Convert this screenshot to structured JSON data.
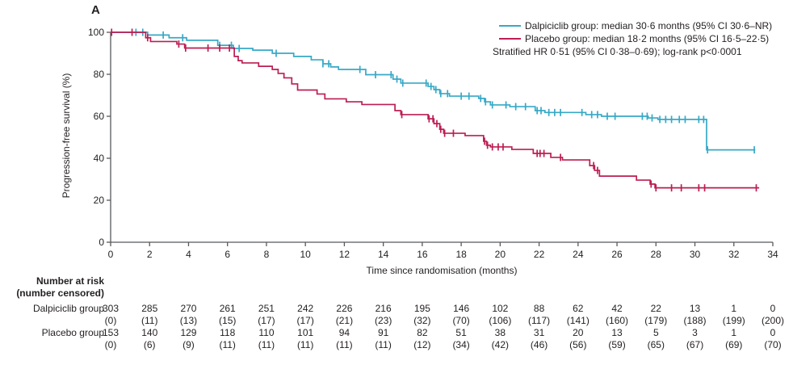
{
  "panel_label": "A",
  "colors": {
    "dalpiciclib": "#37A9C6",
    "placebo": "#BC1E52",
    "axis": "#58595B",
    "text": "#231F20"
  },
  "legend": {
    "entries": [
      {
        "label": "Dalpiciclib group: median 30·6 months (95% CI 30·6–NR)",
        "color": "#37A9C6"
      },
      {
        "label": "Placebo group: median 18·2 months (95% CI 16·5–22·5)",
        "color": "#BC1E52"
      }
    ],
    "stats_line": "Stratified HR 0·51 (95% CI 0·38–0·69); log-rank p<0·0001"
  },
  "axes": {
    "x_label": "Time since randomisation (months)",
    "y_label": "Progression-free survival (%)",
    "x_range": [
      0,
      34
    ],
    "y_range": [
      0,
      100
    ],
    "x_ticks": [
      0,
      2,
      4,
      6,
      8,
      10,
      12,
      14,
      16,
      18,
      20,
      22,
      24,
      26,
      28,
      30,
      32,
      34
    ],
    "y_ticks": [
      0,
      20,
      40,
      60,
      80,
      100
    ]
  },
  "chart_data": {
    "type": "line",
    "subtype": "kaplan-meier-step",
    "title": "",
    "xlabel": "Time since randomisation (months)",
    "ylabel": "Progression-free survival (%)",
    "xlim": [
      0,
      34
    ],
    "ylim": [
      0,
      100
    ],
    "grid": false,
    "legend_position": "top-right",
    "series": [
      {
        "name": "Dalpiciclib group",
        "color": "#37A9C6",
        "steps": [
          [
            0,
            100
          ],
          [
            1.9,
            98.7
          ],
          [
            3.0,
            97.4
          ],
          [
            3.9,
            96.2
          ],
          [
            5.5,
            93.8
          ],
          [
            6.3,
            92.3
          ],
          [
            7.3,
            91.5
          ],
          [
            8.3,
            90.0
          ],
          [
            9.4,
            88.5
          ],
          [
            10.3,
            86.9
          ],
          [
            10.9,
            85.0
          ],
          [
            11.3,
            83.5
          ],
          [
            11.7,
            82.3
          ],
          [
            13.1,
            79.8
          ],
          [
            14.5,
            77.7
          ],
          [
            14.9,
            75.8
          ],
          [
            16.3,
            74.2
          ],
          [
            16.6,
            72.7
          ],
          [
            16.9,
            70.8
          ],
          [
            17.4,
            69.6
          ],
          [
            18.9,
            68.5
          ],
          [
            19.2,
            66.9
          ],
          [
            19.5,
            65.4
          ],
          [
            20.5,
            64.6
          ],
          [
            21.8,
            62.7
          ],
          [
            22.3,
            61.8
          ],
          [
            24.4,
            60.8
          ],
          [
            25.2,
            60.0
          ],
          [
            27.6,
            59.2
          ],
          [
            28.1,
            58.5
          ],
          [
            30.6,
            44.0
          ],
          [
            33.1,
            44.0
          ]
        ],
        "censor_months": [
          1.3,
          1.65,
          2.7,
          3.7,
          5.6,
          6.2,
          6.6,
          8.5,
          10.9,
          11.2,
          12.8,
          13.6,
          14.4,
          14.7,
          15.0,
          16.2,
          16.45,
          16.7,
          16.95,
          17.3,
          18.0,
          18.4,
          19.0,
          19.25,
          19.6,
          20.3,
          20.8,
          21.3,
          21.9,
          22.1,
          22.5,
          22.8,
          23.1,
          24.2,
          24.7,
          25.0,
          25.5,
          25.9,
          27.3,
          27.55,
          27.8,
          28.2,
          28.5,
          28.8,
          29.2,
          29.5,
          30.2,
          30.45,
          30.65,
          33.05
        ]
      },
      {
        "name": "Placebo group",
        "color": "#BC1E52",
        "steps": [
          [
            0,
            100
          ],
          [
            1.8,
            97.4
          ],
          [
            2.05,
            95.6
          ],
          [
            3.4,
            94.4
          ],
          [
            3.8,
            92.5
          ],
          [
            6.35,
            88.5
          ],
          [
            6.55,
            86.5
          ],
          [
            6.75,
            85.4
          ],
          [
            7.6,
            83.8
          ],
          [
            8.3,
            82.3
          ],
          [
            8.6,
            80.4
          ],
          [
            8.9,
            78.3
          ],
          [
            9.3,
            75.4
          ],
          [
            9.6,
            72.5
          ],
          [
            10.6,
            70.6
          ],
          [
            11.0,
            68.3
          ],
          [
            12.1,
            66.9
          ],
          [
            12.9,
            65.6
          ],
          [
            14.6,
            62.7
          ],
          [
            14.9,
            60.8
          ],
          [
            16.3,
            58.8
          ],
          [
            16.6,
            56.5
          ],
          [
            16.9,
            53.8
          ],
          [
            17.1,
            51.9
          ],
          [
            18.2,
            50.8
          ],
          [
            19.15,
            48.1
          ],
          [
            19.3,
            46.2
          ],
          [
            19.5,
            45.4
          ],
          [
            20.6,
            44.2
          ],
          [
            21.7,
            42.3
          ],
          [
            22.6,
            40.4
          ],
          [
            23.2,
            39.2
          ],
          [
            24.6,
            36.5
          ],
          [
            24.85,
            34.2
          ],
          [
            25.1,
            31.5
          ],
          [
            27.0,
            29.6
          ],
          [
            27.7,
            27.7
          ],
          [
            27.95,
            25.9
          ],
          [
            33.3,
            25.9
          ]
        ],
        "censor_months": [
          0.05,
          1.1,
          1.9,
          3.5,
          3.85,
          5.0,
          5.6,
          6.1,
          14.95,
          16.35,
          16.55,
          16.75,
          16.95,
          17.15,
          17.6,
          19.2,
          19.35,
          19.6,
          19.9,
          20.15,
          21.9,
          22.05,
          22.25,
          23.1,
          24.8,
          25.0,
          27.75,
          28.0,
          28.8,
          29.3,
          30.2,
          30.5,
          33.15
        ]
      }
    ]
  },
  "risk_table": {
    "header_line1": "Number at risk",
    "header_line2": "(number censored)",
    "time_points": [
      0,
      2,
      4,
      6,
      8,
      10,
      12,
      14,
      16,
      18,
      20,
      22,
      24,
      26,
      28,
      30,
      32,
      34
    ],
    "rows": [
      {
        "label": "Dalpiciclib group",
        "counts": [
          303,
          285,
          270,
          261,
          251,
          242,
          226,
          216,
          195,
          146,
          102,
          88,
          62,
          42,
          22,
          13,
          1,
          0
        ],
        "censored": [
          0,
          11,
          13,
          15,
          17,
          17,
          21,
          23,
          32,
          70,
          106,
          117,
          141,
          160,
          179,
          188,
          199,
          200
        ]
      },
      {
        "label": "Placebo group",
        "counts": [
          153,
          140,
          129,
          118,
          110,
          101,
          94,
          91,
          82,
          51,
          38,
          31,
          20,
          13,
          5,
          3,
          1,
          0
        ],
        "censored": [
          0,
          6,
          9,
          11,
          11,
          11,
          11,
          11,
          12,
          34,
          42,
          46,
          56,
          59,
          65,
          67,
          69,
          70
        ]
      }
    ]
  }
}
